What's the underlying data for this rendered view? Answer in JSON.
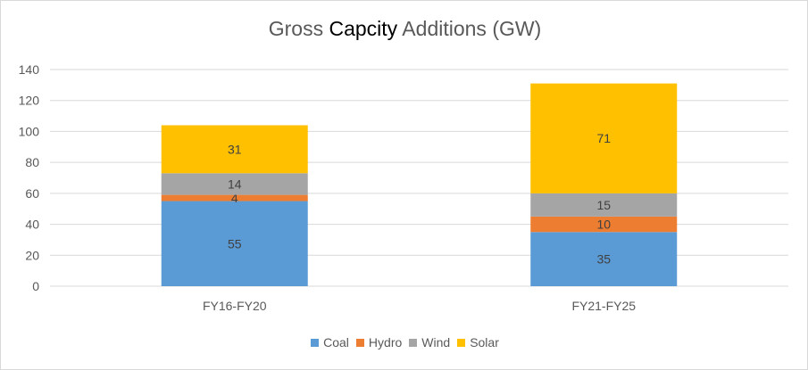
{
  "chart_data": {
    "type": "bar",
    "stacked": true,
    "title_parts": [
      "Gross ",
      "Capcity",
      " Additions (GW)"
    ],
    "categories": [
      "FY16-FY20",
      "FY21-FY25"
    ],
    "series": [
      {
        "name": "Coal",
        "values": [
          55,
          35
        ],
        "color": "#5b9bd5"
      },
      {
        "name": "Hydro",
        "values": [
          4,
          10
        ],
        "color": "#ed7d31"
      },
      {
        "name": "Wind",
        "values": [
          14,
          15
        ],
        "color": "#a5a5a5"
      },
      {
        "name": "Solar",
        "values": [
          31,
          71
        ],
        "color": "#ffc000"
      }
    ],
    "ylim": [
      0,
      140
    ],
    "yticks": [
      0,
      20,
      40,
      60,
      80,
      100,
      120,
      140
    ],
    "grid": true,
    "legend": "bottom",
    "data_labels": true
  }
}
